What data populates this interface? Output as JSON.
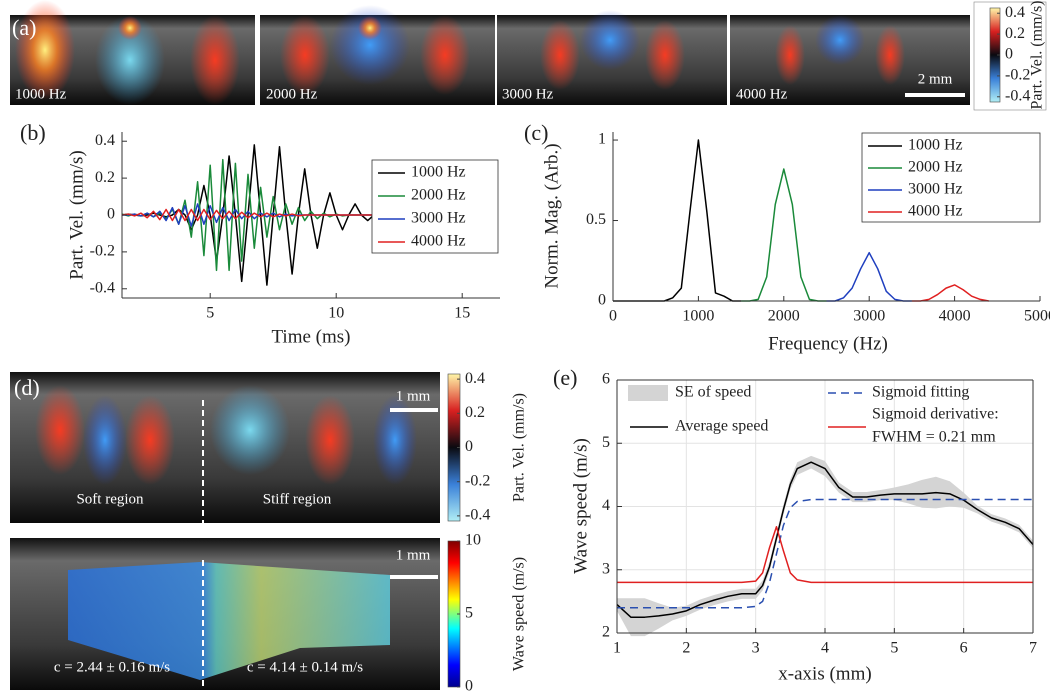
{
  "panel_a": {
    "panel_label": "(a)",
    "labels": [
      "1000 Hz",
      "2000 Hz",
      "3000 Hz",
      "4000 Hz"
    ],
    "scale_bar": "2 mm",
    "colorbar": {
      "label": "Part. Vel. (mm/s)",
      "lim": [
        -0.45,
        0.45
      ],
      "ticks": [
        0.4,
        0.2,
        0,
        -0.2,
        -0.4
      ]
    }
  },
  "panel_d": {
    "panel_label": "(d)",
    "top_image": {
      "scale_bar": "1 mm",
      "regions": [
        "Soft region",
        "Stiff region"
      ],
      "colorbar": {
        "label": "Part. Vel. (mm/s)",
        "lim": [
          -0.43,
          0.43
        ],
        "ticks": [
          0.4,
          0.2,
          0,
          -0.2,
          -0.4
        ]
      }
    },
    "bottom_image": {
      "scale_bar": "1 mm",
      "speeds": [
        "c = 2.44 ± 0.16 m/s",
        "c = 4.14 ± 0.14 m/s"
      ],
      "colorbar": {
        "label": "Wave speed (m/s)",
        "lim": [
          0,
          10
        ],
        "ticks": [
          10,
          5,
          0
        ]
      }
    }
  },
  "chart_data": [
    {
      "type": "line",
      "panel_label": "(b)",
      "xlabel": "Time (ms)",
      "ylabel": "Part. Vel. (mm/s)",
      "xlim": [
        1.5,
        16.5
      ],
      "xticks": [
        5,
        10,
        15
      ],
      "ylim": [
        -0.45,
        0.45
      ],
      "yticks": [
        -0.4,
        -0.2,
        0,
        0.2,
        0.4
      ],
      "grid": false,
      "legend": "right",
      "x": [
        1.5,
        1.75,
        2,
        2.25,
        2.5,
        2.75,
        3,
        3.25,
        3.5,
        3.75,
        4,
        4.25,
        4.5,
        4.75,
        5,
        5.25,
        5.5,
        5.75,
        6,
        6.25,
        6.5,
        6.75,
        7,
        7.25,
        7.5,
        7.75,
        8,
        8.25,
        8.5,
        8.75,
        9,
        9.25,
        9.5,
        9.75,
        10,
        10.25,
        10.5,
        10.75,
        11,
        11.25,
        11.5,
        11.75,
        12
      ],
      "series": [
        {
          "name": "1000 Hz",
          "color": "#000000",
          "values": [
            0,
            0.005,
            0,
            -0.005,
            0,
            0.01,
            0,
            -0.01,
            0,
            0.03,
            0,
            -0.08,
            0,
            0.16,
            0,
            -0.25,
            0,
            0.32,
            0,
            -0.36,
            0,
            0.38,
            0,
            -0.38,
            0,
            0.37,
            0,
            -0.32,
            0,
            0.25,
            0,
            -0.18,
            0,
            0.12,
            0,
            -0.08,
            0,
            0.06,
            0,
            -0.03,
            0,
            0.01,
            0
          ]
        },
        {
          "name": "2000 Hz",
          "color": "#1a8a3a",
          "values": [
            0.005,
            -0.005,
            0.005,
            -0.005,
            0.01,
            -0.01,
            0.01,
            -0.02,
            0.03,
            -0.05,
            0.08,
            -0.12,
            0.18,
            -0.22,
            0.27,
            -0.3,
            0.3,
            -0.3,
            0.28,
            -0.25,
            0.22,
            -0.18,
            0.15,
            -0.12,
            0.1,
            -0.08,
            0.06,
            -0.05,
            0.04,
            -0.03,
            0.02,
            -0.02,
            0.01,
            -0.01,
            0.005,
            -0.005,
            0,
            0,
            0,
            0,
            0,
            0,
            0
          ]
        },
        {
          "name": "3000 Hz",
          "color": "#1f3fbf",
          "values": [
            0,
            0,
            0.005,
            -0.005,
            0.01,
            -0.01,
            0.02,
            -0.03,
            0.04,
            -0.05,
            0.05,
            -0.06,
            0.06,
            -0.05,
            0.05,
            -0.04,
            0.04,
            -0.03,
            0.03,
            -0.02,
            0.02,
            -0.02,
            0.01,
            -0.01,
            0.01,
            -0.01,
            0.005,
            -0.005,
            0,
            0,
            0,
            0,
            0,
            0,
            0,
            0,
            0,
            0,
            0,
            0,
            0,
            0,
            0
          ]
        },
        {
          "name": "4000 Hz",
          "color": "#e02020",
          "values": [
            0,
            0.005,
            -0.005,
            0.01,
            -0.015,
            0.02,
            -0.025,
            0.03,
            -0.03,
            0.03,
            -0.03,
            0.03,
            -0.03,
            0.03,
            -0.025,
            0.025,
            -0.02,
            0.02,
            -0.02,
            0.015,
            -0.015,
            0.01,
            -0.01,
            0.01,
            -0.01,
            0.005,
            -0.005,
            0.005,
            -0.005,
            0,
            0,
            0,
            0,
            0,
            0,
            0,
            0,
            0,
            0,
            0,
            0,
            0,
            0
          ]
        }
      ]
    },
    {
      "type": "line",
      "panel_label": "(c)",
      "xlabel": "Frequency (Hz)",
      "ylabel": "Norm. Mag. (Arb.)",
      "xlim": [
        0,
        5000
      ],
      "xticks": [
        0,
        1000,
        2000,
        3000,
        4000,
        5000
      ],
      "ylim": [
        0,
        1.05
      ],
      "yticks": [
        0,
        0.5,
        1
      ],
      "grid": false,
      "legend": "upper right",
      "x": [
        0,
        100,
        200,
        300,
        400,
        500,
        600,
        700,
        800,
        900,
        1000,
        1100,
        1200,
        1300,
        1400,
        1500,
        1600,
        1700,
        1800,
        1900,
        2000,
        2100,
        2200,
        2300,
        2400,
        2500,
        2600,
        2700,
        2800,
        2900,
        3000,
        3100,
        3200,
        3300,
        3400,
        3500,
        3600,
        3700,
        3800,
        3900,
        4000,
        4100,
        4200,
        4300,
        4400,
        4500,
        4600,
        4700,
        4800,
        4900,
        5000
      ],
      "series": [
        {
          "name": "1000 Hz",
          "color": "#000000",
          "values": [
            0,
            0,
            0,
            0,
            0,
            0,
            0,
            0.02,
            0.08,
            0.55,
            1,
            0.55,
            0.05,
            0.03,
            0,
            0,
            null,
            null,
            null,
            null,
            null,
            null,
            null,
            null,
            null,
            null,
            null,
            null,
            null,
            null,
            null,
            null,
            null,
            null,
            null,
            null,
            null,
            null,
            null,
            null,
            null,
            null,
            null,
            null,
            null,
            null,
            null,
            null,
            null,
            null,
            null
          ]
        },
        {
          "name": "2000 Hz",
          "color": "#1a8a3a",
          "values": [
            null,
            null,
            null,
            null,
            null,
            null,
            null,
            null,
            null,
            null,
            null,
            null,
            null,
            null,
            null,
            0,
            0,
            0.01,
            0.15,
            0.6,
            0.82,
            0.6,
            0.15,
            0.01,
            0,
            0,
            null,
            null,
            null,
            null,
            null,
            null,
            null,
            null,
            null,
            null,
            null,
            null,
            null,
            null,
            null,
            null,
            null,
            null,
            null,
            null,
            null,
            null,
            null,
            null,
            null
          ]
        },
        {
          "name": "3000 Hz",
          "color": "#1f3fbf",
          "values": [
            null,
            null,
            null,
            null,
            null,
            null,
            null,
            null,
            null,
            null,
            null,
            null,
            null,
            null,
            null,
            null,
            null,
            null,
            null,
            null,
            null,
            null,
            null,
            null,
            null,
            0,
            0,
            0.02,
            0.08,
            0.2,
            0.3,
            0.2,
            0.06,
            0.01,
            0,
            0,
            null,
            null,
            null,
            null,
            null,
            null,
            null,
            null,
            null,
            null,
            null,
            null,
            null,
            null,
            null
          ]
        },
        {
          "name": "4000 Hz",
          "color": "#e02020",
          "values": [
            null,
            null,
            null,
            null,
            null,
            null,
            null,
            null,
            null,
            null,
            null,
            null,
            null,
            null,
            null,
            null,
            null,
            null,
            null,
            null,
            null,
            null,
            null,
            null,
            null,
            null,
            null,
            null,
            null,
            null,
            null,
            null,
            null,
            null,
            null,
            0,
            0,
            0.01,
            0.04,
            0.08,
            0.1,
            0.07,
            0.03,
            0.01,
            0,
            null,
            null,
            null,
            null,
            null,
            null
          ]
        }
      ]
    },
    {
      "type": "line",
      "panel_label": "(e)",
      "xlabel": "x-axis (mm)",
      "ylabel": "Wave speed (m/s)",
      "xlim": [
        1,
        7
      ],
      "xticks": [
        1,
        2,
        3,
        4,
        5,
        6,
        7
      ],
      "ylim": [
        2,
        6
      ],
      "yticks": [
        2,
        3,
        4,
        5,
        6
      ],
      "grid": true,
      "box": true,
      "legend": "upper center",
      "x": [
        1,
        1.2,
        1.4,
        1.6,
        1.8,
        2,
        2.2,
        2.4,
        2.6,
        2.8,
        3,
        3.1,
        3.2,
        3.3,
        3.4,
        3.5,
        3.6,
        3.8,
        4,
        4.2,
        4.4,
        4.6,
        4.8,
        5,
        5.2,
        5.4,
        5.6,
        5.8,
        6,
        6.2,
        6.4,
        6.6,
        6.8,
        7
      ],
      "series": [
        {
          "name": "SE of speed",
          "kind": "band",
          "color": "#d4d4d4",
          "lower": [
            2.35,
            1.95,
            1.95,
            2.07,
            2.2,
            2.27,
            2.37,
            2.44,
            2.5,
            2.54,
            2.54,
            2.67,
            2.97,
            3.42,
            3.87,
            4.27,
            4.5,
            4.6,
            4.48,
            4.22,
            4.07,
            4.07,
            4.1,
            4.1,
            4.05,
            3.98,
            3.97,
            4.0,
            3.98,
            3.89,
            3.76,
            3.69,
            3.59,
            3.34
          ],
          "upper": [
            2.55,
            2.55,
            2.55,
            2.47,
            2.4,
            2.43,
            2.53,
            2.6,
            2.66,
            2.7,
            2.7,
            2.83,
            3.13,
            3.58,
            4.03,
            4.43,
            4.7,
            4.8,
            4.72,
            4.38,
            4.23,
            4.23,
            4.26,
            4.3,
            4.35,
            4.42,
            4.47,
            4.4,
            4.22,
            4.01,
            3.88,
            3.81,
            3.71,
            3.46
          ]
        },
        {
          "name": "Average speed",
          "color": "#000000",
          "values": [
            2.45,
            2.25,
            2.25,
            2.27,
            2.3,
            2.35,
            2.45,
            2.52,
            2.58,
            2.62,
            2.62,
            2.75,
            3.05,
            3.5,
            3.95,
            4.35,
            4.6,
            4.7,
            4.6,
            4.3,
            4.15,
            4.15,
            4.18,
            4.2,
            4.2,
            4.2,
            4.22,
            4.2,
            4.1,
            3.95,
            3.82,
            3.75,
            3.65,
            3.4
          ]
        },
        {
          "name": "Sigmoid fitting",
          "color": "#2a4fb0",
          "dash": true,
          "values": [
            2.4,
            2.4,
            2.4,
            2.4,
            2.4,
            2.4,
            2.4,
            2.4,
            2.4,
            2.4,
            2.42,
            2.5,
            2.8,
            3.25,
            3.7,
            3.98,
            4.08,
            4.11,
            4.11,
            4.11,
            4.11,
            4.11,
            4.11,
            4.11,
            4.11,
            4.11,
            4.11,
            4.11,
            4.11,
            4.11,
            4.11,
            4.11,
            4.11,
            4.11
          ]
        },
        {
          "name": "Sigmoid derivative:",
          "note": "FWHM = 0.21 mm",
          "color": "#e02020",
          "values": [
            2.8,
            2.8,
            2.8,
            2.8,
            2.8,
            2.8,
            2.8,
            2.8,
            2.8,
            2.8,
            2.82,
            2.95,
            3.35,
            3.68,
            3.3,
            2.95,
            2.84,
            2.8,
            2.8,
            2.8,
            2.8,
            2.8,
            2.8,
            2.8,
            2.8,
            2.8,
            2.8,
            2.8,
            2.8,
            2.8,
            2.8,
            2.8,
            2.8,
            2.8
          ]
        }
      ]
    }
  ]
}
